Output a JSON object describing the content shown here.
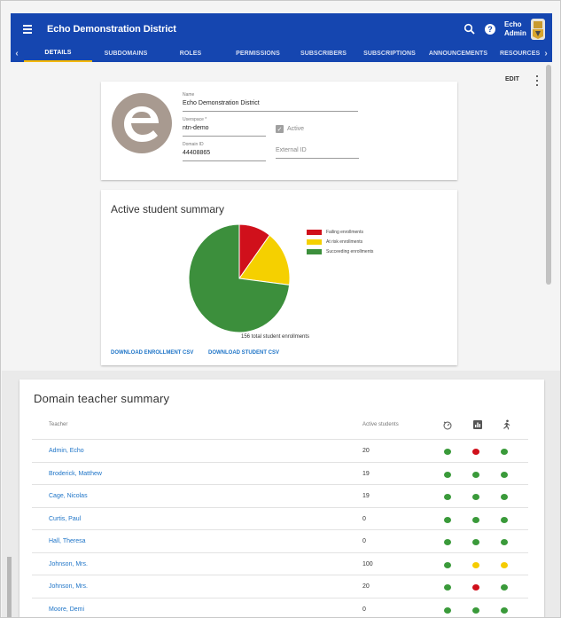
{
  "header": {
    "title": "Echo Demonstration District",
    "user_line1": "Echo",
    "user_line2": "Admin",
    "help_glyph": "?"
  },
  "tabs": [
    "DETAILS",
    "SUBDOMAINS",
    "ROLES",
    "PERMISSIONS",
    "SUBSCRIBERS",
    "SUBSCRIPTIONS",
    "ANNOUNCEMENTS",
    "RESOURCES"
  ],
  "toolbar": {
    "edit_label": "EDIT"
  },
  "details": {
    "name_label": "Name",
    "name_value": "Echo Demonstration District",
    "userspace_label": "Userspace *",
    "userspace_value": "ntn-demo",
    "active_label": "Active",
    "domain_id_label": "Domain ID",
    "domain_id_value": "44408865",
    "external_id_placeholder": "External ID"
  },
  "summary": {
    "title": "Active student summary",
    "total_text": "156 total student enrollments",
    "download_enrollment": "DOWNLOAD ENROLLMENT CSV",
    "download_student": "DOWNLOAD STUDENT CSV"
  },
  "chart_data": {
    "type": "pie",
    "title": "Active student summary",
    "categories": [
      "Failing enrollments",
      "At risk enrollments",
      "Succeeding enrollments"
    ],
    "values": [
      16,
      26,
      114
    ],
    "colors": [
      "#d0101b",
      "#f5d000",
      "#3c8f3c"
    ],
    "legend_position": "right"
  },
  "teachers": {
    "title": "Domain teacher summary",
    "col_teacher": "Teacher",
    "col_active": "Active students",
    "status_colors": {
      "green": "#3a9a3a",
      "red": "#d0101b",
      "yellow": "#f5cc00"
    },
    "rows": [
      {
        "name": "Admin, Echo",
        "count": "20",
        "status": [
          "green",
          "red",
          "green"
        ]
      },
      {
        "name": "Broderick, Matthew",
        "count": "19",
        "status": [
          "green",
          "green",
          "green"
        ]
      },
      {
        "name": "Cage, Nicolas",
        "count": "19",
        "status": [
          "green",
          "green",
          "green"
        ]
      },
      {
        "name": "Curtis, Paul",
        "count": "0",
        "status": [
          "green",
          "green",
          "green"
        ]
      },
      {
        "name": "Hall, Theresa",
        "count": "0",
        "status": [
          "green",
          "green",
          "green"
        ]
      },
      {
        "name": "Johnson, Mrs.",
        "count": "100",
        "status": [
          "green",
          "yellow",
          "yellow"
        ]
      },
      {
        "name": "Johnson, Mrs.",
        "count": "20",
        "status": [
          "green",
          "red",
          "green"
        ]
      },
      {
        "name": "Moore, Demi",
        "count": "0",
        "status": [
          "green",
          "green",
          "green"
        ]
      }
    ]
  }
}
